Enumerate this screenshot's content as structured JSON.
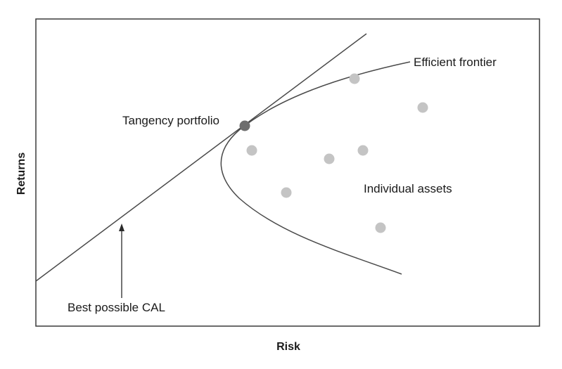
{
  "labels": {
    "tangency": "Tangency portfolio",
    "frontier": "Efficient frontier",
    "assets": "Individual assets",
    "cal": "Best possible CAL"
  },
  "axes": {
    "x_title": "Risk",
    "y_title": "Returns"
  },
  "colors": {
    "frame": "#3a3a3a",
    "line": "#4a4a4a",
    "asset_dot": "#c4c4c4",
    "tangency_dot": "#6e6e6e",
    "text": "#1a1a1a"
  }
}
